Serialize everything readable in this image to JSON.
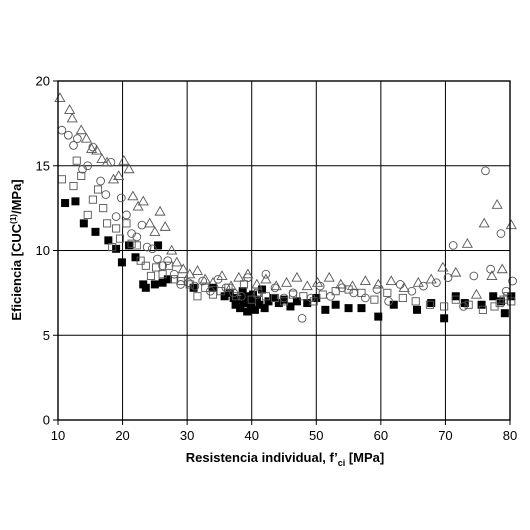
{
  "chart_data": {
    "type": "scatter",
    "title": "",
    "xlabel": {
      "prefix": "Resistencia individual, f’",
      "sub": "ci",
      "suffix": " [MPa]"
    },
    "ylabel": {
      "prefix": "Eficiencia [CUC",
      "sup": "(1)",
      "suffix": "/MPa]"
    },
    "xlim": [
      10,
      80
    ],
    "ylim": [
      0,
      20
    ],
    "xticks": [
      10,
      20,
      30,
      40,
      50,
      60,
      70,
      80
    ],
    "yticks": [
      0,
      5,
      10,
      15,
      20
    ],
    "grid": true,
    "legend": "none",
    "series": [
      {
        "marker": "filled-square",
        "color": "#000000",
        "points": [
          [
            11.1,
            12.8
          ],
          [
            12.7,
            12.9
          ],
          [
            14.0,
            11.6
          ],
          [
            15.8,
            11.1
          ],
          [
            17.8,
            10.6
          ],
          [
            19.0,
            10.1
          ],
          [
            19.9,
            9.3
          ],
          [
            21.0,
            10.3
          ],
          [
            22.0,
            9.6
          ],
          [
            23.2,
            8.0
          ],
          [
            23.6,
            7.8
          ],
          [
            25.0,
            8.0
          ],
          [
            25.5,
            10.3
          ],
          [
            26.2,
            8.1
          ],
          [
            27.0,
            8.3
          ],
          [
            31.0,
            7.8
          ],
          [
            34.0,
            7.8
          ],
          [
            35.8,
            7.3
          ],
          [
            36.6,
            7.5
          ],
          [
            37.2,
            7.2
          ],
          [
            37.5,
            6.8
          ],
          [
            37.9,
            7.1
          ],
          [
            38.2,
            6.6
          ],
          [
            38.6,
            7.6
          ],
          [
            38.8,
            6.9
          ],
          [
            39.0,
            7.3
          ],
          [
            39.3,
            6.4
          ],
          [
            39.6,
            7.0
          ],
          [
            39.9,
            6.7
          ],
          [
            40.2,
            7.4
          ],
          [
            40.5,
            6.5
          ],
          [
            40.8,
            7.1
          ],
          [
            41.2,
            6.8
          ],
          [
            41.6,
            7.7
          ],
          [
            42.0,
            6.6
          ],
          [
            42.6,
            7.0
          ],
          [
            43.4,
            7.2
          ],
          [
            44.2,
            6.9
          ],
          [
            45.0,
            7.1
          ],
          [
            46.0,
            6.7
          ],
          [
            47.0,
            7.0
          ],
          [
            48.6,
            6.9
          ],
          [
            50.0,
            7.2
          ],
          [
            51.4,
            6.5
          ],
          [
            53.0,
            6.8
          ],
          [
            55.0,
            6.6
          ],
          [
            57.0,
            6.6
          ],
          [
            59.6,
            6.1
          ],
          [
            62.0,
            6.8
          ],
          [
            65.6,
            6.5
          ],
          [
            67.8,
            6.9
          ],
          [
            69.8,
            6.0
          ],
          [
            71.6,
            7.3
          ],
          [
            73.0,
            6.9
          ],
          [
            75.6,
            6.8
          ],
          [
            77.4,
            7.3
          ],
          [
            78.6,
            7.0
          ],
          [
            79.2,
            6.3
          ],
          [
            80.2,
            7.3
          ]
        ]
      },
      {
        "marker": "open-square",
        "color": "#000000",
        "points": [
          [
            10.6,
            14.2
          ],
          [
            12.4,
            13.8
          ],
          [
            12.9,
            15.3
          ],
          [
            13.6,
            14.4
          ],
          [
            14.6,
            12.1
          ],
          [
            15.4,
            13.0
          ],
          [
            16.2,
            13.6
          ],
          [
            17.0,
            12.5
          ],
          [
            17.6,
            11.6
          ],
          [
            18.4,
            10.2
          ],
          [
            19.0,
            11.3
          ],
          [
            19.6,
            10.7
          ],
          [
            20.6,
            11.6
          ],
          [
            21.4,
            10.4
          ],
          [
            22.2,
            10.3
          ],
          [
            22.8,
            9.4
          ],
          [
            23.6,
            9.1
          ],
          [
            24.4,
            8.5
          ],
          [
            25.2,
            9.0
          ],
          [
            26.2,
            8.6
          ],
          [
            27.2,
            9.1
          ],
          [
            28.0,
            8.3
          ],
          [
            29.0,
            8.2
          ],
          [
            30.4,
            8.0
          ],
          [
            31.6,
            7.3
          ],
          [
            32.8,
            7.8
          ],
          [
            34.0,
            7.4
          ],
          [
            35.2,
            7.6
          ],
          [
            36.4,
            7.8
          ],
          [
            37.6,
            7.3
          ],
          [
            38.8,
            8.0
          ],
          [
            40.0,
            7.1
          ],
          [
            41.0,
            7.5
          ],
          [
            42.2,
            7.3
          ],
          [
            43.6,
            7.2
          ],
          [
            45.0,
            7.0
          ],
          [
            46.4,
            7.4
          ],
          [
            48.0,
            7.3
          ],
          [
            49.6,
            7.0
          ],
          [
            51.0,
            7.4
          ],
          [
            53.0,
            7.6
          ],
          [
            55.0,
            7.7
          ],
          [
            57.0,
            7.5
          ],
          [
            59.0,
            7.1
          ],
          [
            61.0,
            7.5
          ],
          [
            63.4,
            7.2
          ],
          [
            65.4,
            7.0
          ],
          [
            67.6,
            6.8
          ],
          [
            69.8,
            6.7
          ],
          [
            71.6,
            7.1
          ],
          [
            73.6,
            6.8
          ],
          [
            75.8,
            6.5
          ],
          [
            77.6,
            6.7
          ],
          [
            78.4,
            6.9
          ],
          [
            79.0,
            7.1
          ],
          [
            79.6,
            7.3
          ],
          [
            80.2,
            7.0
          ]
        ]
      },
      {
        "marker": "open-circle",
        "color": "#000000",
        "points": [
          [
            10.6,
            17.1
          ],
          [
            11.6,
            16.8
          ],
          [
            12.4,
            16.2
          ],
          [
            13.0,
            16.6
          ],
          [
            13.8,
            14.8
          ],
          [
            14.6,
            15.0
          ],
          [
            15.4,
            16.1
          ],
          [
            16.6,
            14.1
          ],
          [
            17.4,
            13.3
          ],
          [
            18.2,
            15.2
          ],
          [
            19.0,
            12.0
          ],
          [
            19.8,
            13.1
          ],
          [
            20.6,
            12.1
          ],
          [
            21.4,
            11.0
          ],
          [
            22.2,
            10.8
          ],
          [
            23.0,
            11.5
          ],
          [
            23.8,
            10.2
          ],
          [
            24.6,
            10.1
          ],
          [
            25.4,
            9.5
          ],
          [
            26.2,
            9.1
          ],
          [
            27.0,
            9.4
          ],
          [
            28.0,
            8.6
          ],
          [
            29.0,
            8.0
          ],
          [
            30.2,
            8.1
          ],
          [
            31.2,
            7.9
          ],
          [
            32.4,
            8.2
          ],
          [
            33.6,
            7.6
          ],
          [
            34.8,
            8.3
          ],
          [
            36.0,
            7.8
          ],
          [
            37.2,
            7.5
          ],
          [
            38.4,
            7.3
          ],
          [
            39.4,
            8.4
          ],
          [
            40.8,
            7.4
          ],
          [
            42.2,
            8.6
          ],
          [
            43.6,
            7.8
          ],
          [
            45.0,
            7.2
          ],
          [
            46.4,
            7.5
          ],
          [
            47.8,
            6.0
          ],
          [
            49.2,
            7.2
          ],
          [
            50.6,
            7.9
          ],
          [
            52.2,
            7.3
          ],
          [
            54.0,
            7.8
          ],
          [
            55.8,
            7.5
          ],
          [
            57.6,
            7.2
          ],
          [
            59.4,
            7.7
          ],
          [
            61.2,
            7.0
          ],
          [
            63.0,
            8.0
          ],
          [
            64.8,
            7.6
          ],
          [
            66.6,
            7.9
          ],
          [
            68.6,
            8.1
          ],
          [
            70.4,
            8.4
          ],
          [
            71.2,
            10.3
          ],
          [
            72.8,
            6.7
          ],
          [
            74.4,
            8.5
          ],
          [
            76.2,
            14.7
          ],
          [
            77.0,
            8.9
          ],
          [
            78.6,
            11.0
          ],
          [
            79.4,
            7.6
          ],
          [
            80.4,
            8.2
          ]
        ]
      },
      {
        "marker": "open-triangle",
        "color": "#000000",
        "points": [
          [
            10.3,
            19.0
          ],
          [
            11.8,
            18.3
          ],
          [
            12.2,
            17.8
          ],
          [
            13.6,
            17.1
          ],
          [
            14.4,
            16.6
          ],
          [
            15.2,
            16.0
          ],
          [
            16.0,
            15.9
          ],
          [
            16.8,
            15.4
          ],
          [
            17.6,
            15.2
          ],
          [
            18.6,
            14.2
          ],
          [
            19.4,
            14.4
          ],
          [
            20.2,
            15.3
          ],
          [
            21.0,
            14.8
          ],
          [
            21.6,
            13.2
          ],
          [
            22.4,
            12.6
          ],
          [
            23.2,
            12.9
          ],
          [
            24.2,
            11.6
          ],
          [
            25.0,
            11.1
          ],
          [
            25.8,
            12.3
          ],
          [
            26.6,
            11.4
          ],
          [
            27.6,
            10.0
          ],
          [
            28.4,
            9.3
          ],
          [
            29.4,
            8.9
          ],
          [
            30.4,
            8.6
          ],
          [
            31.6,
            8.8
          ],
          [
            32.8,
            8.3
          ],
          [
            34.0,
            8.1
          ],
          [
            35.4,
            8.5
          ],
          [
            36.8,
            7.9
          ],
          [
            38.0,
            8.4
          ],
          [
            39.4,
            8.6
          ],
          [
            40.8,
            8.0
          ],
          [
            42.2,
            8.3
          ],
          [
            43.8,
            7.9
          ],
          [
            45.4,
            8.1
          ],
          [
            47.0,
            8.4
          ],
          [
            48.6,
            7.9
          ],
          [
            50.2,
            8.1
          ],
          [
            52.0,
            8.4
          ],
          [
            53.8,
            8.0
          ],
          [
            55.6,
            7.9
          ],
          [
            57.6,
            8.2
          ],
          [
            59.6,
            8.0
          ],
          [
            61.6,
            8.2
          ],
          [
            63.6,
            7.8
          ],
          [
            65.8,
            8.1
          ],
          [
            67.8,
            8.3
          ],
          [
            69.6,
            9.0
          ],
          [
            71.6,
            8.7
          ],
          [
            73.4,
            10.4
          ],
          [
            74.8,
            7.4
          ],
          [
            76.0,
            11.6
          ],
          [
            77.2,
            8.5
          ],
          [
            78.0,
            12.7
          ],
          [
            78.8,
            8.9
          ],
          [
            80.2,
            11.5
          ]
        ]
      }
    ]
  }
}
